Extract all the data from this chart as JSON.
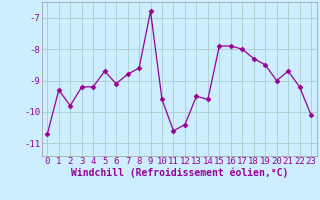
{
  "x": [
    0,
    1,
    2,
    3,
    4,
    5,
    6,
    7,
    8,
    9,
    10,
    11,
    12,
    13,
    14,
    15,
    16,
    17,
    18,
    19,
    20,
    21,
    22,
    23
  ],
  "y": [
    -10.7,
    -9.3,
    -9.8,
    -9.2,
    -9.2,
    -8.7,
    -9.1,
    -8.8,
    -8.6,
    -6.8,
    -9.6,
    -10.6,
    -10.4,
    -9.5,
    -9.6,
    -7.9,
    -7.9,
    -8.0,
    -8.3,
    -8.5,
    -9.0,
    -8.7,
    -9.2,
    -10.1
  ],
  "line_color": "#990099",
  "marker": "D",
  "marker_size": 2.5,
  "bg_color": "#cceeff",
  "grid_color": "#aacccc",
  "xlabel": "Windchill (Refroidissement éolien,°C)",
  "xlabel_color": "#990099",
  "xlabel_fontsize": 7,
  "tick_color": "#990099",
  "tick_fontsize": 6.5,
  "yticks": [
    -11,
    -10,
    -9,
    -8,
    -7
  ],
  "ylim": [
    -11.4,
    -6.5
  ],
  "xlim": [
    -0.5,
    23.5
  ]
}
